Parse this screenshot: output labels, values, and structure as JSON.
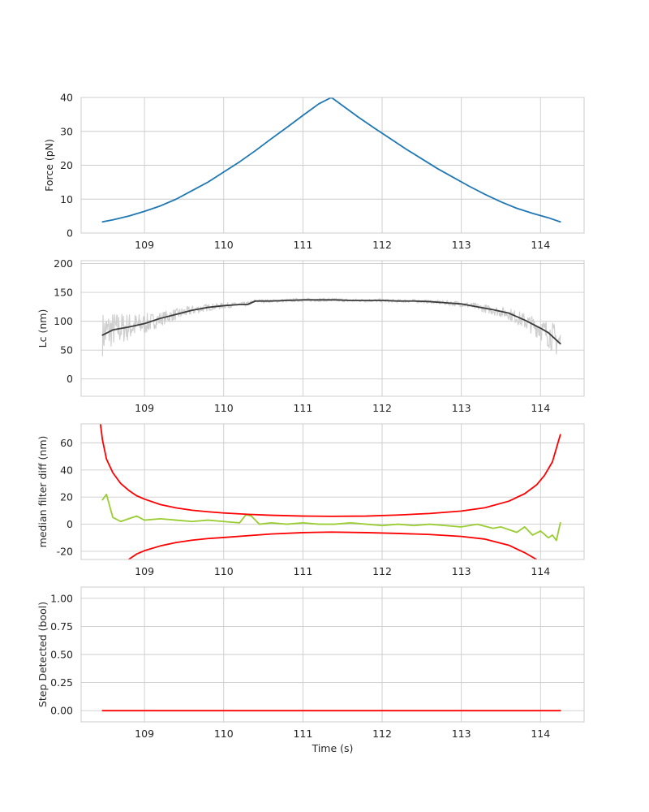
{
  "chart_data": [
    {
      "type": "line",
      "id": "force",
      "xlabel": "",
      "ylabel": "Force (pN)",
      "xlim": [
        108.2,
        114.55
      ],
      "ylim": [
        0,
        40
      ],
      "xticks": [
        109,
        110,
        111,
        112,
        113,
        114
      ],
      "yticks": [
        0,
        10,
        20,
        30,
        40
      ],
      "grid": true,
      "series": [
        {
          "color": "#1f77b4",
          "x": [
            108.47,
            108.6,
            108.8,
            109.0,
            109.2,
            109.4,
            109.6,
            109.8,
            110.0,
            110.2,
            110.4,
            110.6,
            110.8,
            111.0,
            111.2,
            111.36,
            111.5,
            111.7,
            111.9,
            112.1,
            112.3,
            112.5,
            112.7,
            112.9,
            113.1,
            113.3,
            113.5,
            113.7,
            113.9,
            114.1,
            114.25
          ],
          "y": [
            3.3,
            3.9,
            5.0,
            6.4,
            8.0,
            10.0,
            12.5,
            15.0,
            18.0,
            21.0,
            24.3,
            27.8,
            31.2,
            34.7,
            38.1,
            40.0,
            37.6,
            34.2,
            31.0,
            27.9,
            24.8,
            21.9,
            19.0,
            16.4,
            13.8,
            11.4,
            9.2,
            7.3,
            5.8,
            4.5,
            3.3
          ]
        }
      ]
    },
    {
      "type": "line",
      "id": "contour-length",
      "xlabel": "",
      "ylabel": "Lc (nm)",
      "xlim": [
        108.2,
        114.55
      ],
      "ylim": [
        -30,
        205
      ],
      "xticks": [
        109,
        110,
        111,
        112,
        113,
        114
      ],
      "yticks": [
        0,
        50,
        100,
        150,
        200
      ],
      "grid": true,
      "series": [
        {
          "role": "raw",
          "color": "#cfcfcf",
          "x": [
            108.47,
            108.6,
            108.8,
            109.0,
            109.2,
            109.4,
            109.6,
            109.8,
            110.0,
            110.2,
            110.3,
            110.4,
            110.6,
            110.8,
            111.0,
            111.2,
            111.4,
            111.6,
            111.8,
            112.0,
            112.2,
            112.4,
            112.6,
            112.8,
            113.0,
            113.2,
            113.4,
            113.6,
            113.8,
            114.0,
            114.1,
            114.25
          ],
          "y": [
            78,
            86,
            90,
            95,
            104,
            112,
            119,
            124,
            127,
            129,
            130,
            135,
            135,
            136,
            137,
            137,
            137,
            136,
            136,
            136,
            135,
            135,
            134,
            132,
            130,
            125,
            119,
            113,
            100,
            86,
            78,
            62
          ],
          "noise": [
            38,
            30,
            25,
            18,
            12,
            10,
            8,
            6,
            5,
            4,
            4,
            3,
            3,
            3,
            3,
            3,
            3,
            3,
            3,
            3,
            3,
            3,
            3,
            4,
            5,
            6,
            8,
            10,
            14,
            18,
            24,
            30
          ]
        },
        {
          "role": "smoothed",
          "color": "#3a3a3a",
          "x": [
            108.47,
            108.6,
            108.8,
            109.0,
            109.2,
            109.4,
            109.6,
            109.8,
            110.0,
            110.2,
            110.3,
            110.4,
            110.6,
            110.8,
            111.0,
            111.2,
            111.4,
            111.6,
            111.8,
            112.0,
            112.2,
            112.4,
            112.6,
            112.8,
            113.0,
            113.2,
            113.4,
            113.6,
            113.8,
            114.0,
            114.1,
            114.25
          ],
          "y": [
            76,
            85,
            90,
            96,
            105,
            112,
            119,
            124,
            127,
            129,
            129,
            135,
            135,
            136,
            137,
            137,
            137,
            136,
            136,
            136,
            135,
            135,
            134,
            132,
            130,
            125,
            120,
            114,
            102,
            88,
            80,
            61
          ]
        }
      ]
    },
    {
      "type": "line",
      "id": "median-filter-diff",
      "xlabel": "",
      "ylabel": "median filter diff (nm)",
      "xlim": [
        108.2,
        114.55
      ],
      "ylim": [
        -26,
        74
      ],
      "xticks": [
        109,
        110,
        111,
        112,
        113,
        114
      ],
      "yticks": [
        -20,
        0,
        20,
        40,
        60
      ],
      "grid": true,
      "series": [
        {
          "role": "diff",
          "color": "#9acd32",
          "x": [
            108.47,
            108.52,
            108.6,
            108.7,
            108.8,
            108.9,
            109.0,
            109.2,
            109.4,
            109.6,
            109.8,
            110.0,
            110.2,
            110.28,
            110.35,
            110.45,
            110.6,
            110.8,
            111.0,
            111.2,
            111.4,
            111.6,
            111.8,
            112.0,
            112.2,
            112.4,
            112.6,
            112.8,
            113.0,
            113.2,
            113.4,
            113.5,
            113.6,
            113.7,
            113.8,
            113.9,
            114.0,
            114.1,
            114.15,
            114.2,
            114.25
          ],
          "y": [
            18,
            22,
            5,
            2,
            4,
            6,
            3,
            4,
            3,
            2,
            3,
            2,
            1,
            7,
            6,
            0,
            1,
            0,
            1,
            0,
            0,
            1,
            0,
            -1,
            0,
            -1,
            0,
            -1,
            -2,
            0,
            -3,
            -2,
            -4,
            -6,
            -2,
            -8,
            -5,
            -10,
            -8,
            -12,
            1
          ]
        },
        {
          "role": "upper-threshold",
          "color": "#ff0000",
          "x": [
            108.43,
            108.47,
            108.52,
            108.6,
            108.7,
            108.8,
            108.9,
            109.0,
            109.2,
            109.4,
            109.6,
            109.8,
            110.0,
            110.3,
            110.6,
            111.0,
            111.36,
            111.8,
            112.2,
            112.6,
            113.0,
            113.3,
            113.6,
            113.8,
            113.95,
            114.05,
            114.15,
            114.25
          ],
          "y": [
            80,
            62,
            48,
            38,
            30,
            25,
            21,
            18.5,
            14.5,
            12,
            10.3,
            9.2,
            8.3,
            7.3,
            6.6,
            6.0,
            5.8,
            6.0,
            6.8,
            7.9,
            9.7,
            12.2,
            17,
            22.5,
            29,
            36,
            46,
            66
          ]
        },
        {
          "role": "lower-threshold",
          "color": "#ff0000",
          "x": [
            108.8,
            108.9,
            109.0,
            109.2,
            109.4,
            109.6,
            109.8,
            110.0,
            110.3,
            110.6,
            111.0,
            111.36,
            111.8,
            112.2,
            112.6,
            113.0,
            113.3,
            113.6,
            113.8,
            113.95
          ],
          "y": [
            -26,
            -22,
            -19.5,
            -16,
            -13.5,
            -11.8,
            -10.6,
            -9.8,
            -8.5,
            -7.2,
            -6.2,
            -5.8,
            -6.2,
            -6.8,
            -7.6,
            -9.0,
            -11.0,
            -15.5,
            -21,
            -26
          ]
        }
      ]
    },
    {
      "type": "line",
      "id": "step-detected",
      "xlabel": "Time (s)",
      "ylabel": "Step Detected (bool)",
      "xlim": [
        108.2,
        114.55
      ],
      "ylim": [
        -0.1,
        1.1
      ],
      "xticks": [
        109,
        110,
        111,
        112,
        113,
        114
      ],
      "yticks": [
        0.0,
        0.25,
        0.5,
        0.75,
        1.0
      ],
      "ytick_labels": [
        "0.00",
        "0.25",
        "0.50",
        "0.75",
        "1.00"
      ],
      "grid": true,
      "series": [
        {
          "color": "#ff0000",
          "x": [
            108.47,
            114.25
          ],
          "y": [
            0,
            0
          ]
        }
      ]
    }
  ]
}
